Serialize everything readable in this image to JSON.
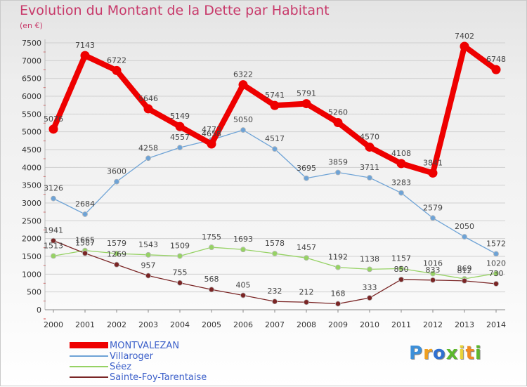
{
  "chart_data": {
    "type": "line",
    "title": "Evolution du Montant de la Dette par Habitant",
    "subtitle": "(en €)",
    "ylim": [
      0,
      7500
    ],
    "yticks": [
      0,
      500,
      1000,
      1500,
      2000,
      2500,
      3000,
      3500,
      4000,
      4500,
      5000,
      5500,
      6000,
      6500,
      7000,
      7500
    ],
    "categories": [
      "2000",
      "2001",
      "2002",
      "2003",
      "2004",
      "2005",
      "2006",
      "2007",
      "2008",
      "2009",
      "2010",
      "2011",
      "2012",
      "2013",
      "2014"
    ],
    "grid": true,
    "legend_position": "bottom-left",
    "series": [
      {
        "name": "MONTVALEZAN",
        "color": "#ee0000",
        "emphasis": true,
        "values": [
          5076,
          7143,
          6722,
          5646,
          5149,
          4658,
          6322,
          5741,
          5791,
          5260,
          4570,
          4108,
          3841,
          7402,
          6748
        ],
        "labels": [
          "5076",
          "7143",
          "6722",
          "5646",
          "5149",
          "4658",
          "6322",
          "5741",
          "5791",
          "5260",
          "4570",
          "4108",
          "3841",
          "7402",
          "6748"
        ]
      },
      {
        "name": "Villaroger",
        "color": "#6ea3d6",
        "values": [
          3126,
          2684,
          3600,
          4258,
          4557,
          4773,
          5050,
          4517,
          3695,
          3859,
          3711,
          3283,
          2579,
          2050,
          1572
        ],
        "labels": [
          "3126",
          "2684",
          "3600",
          "4258",
          "4557",
          "4773",
          "5050",
          "4517",
          "3695",
          "3859",
          "3711",
          "3283",
          "2579",
          "2050",
          "1572"
        ]
      },
      {
        "name": "Séez",
        "color": "#96d264",
        "values": [
          1513,
          1665,
          1579,
          1543,
          1509,
          1755,
          1693,
          1578,
          1457,
          1192,
          1138,
          1157,
          1016,
          869,
          1020
        ],
        "labels": [
          "1513",
          "1665",
          "1579",
          "1543",
          "1509",
          "1755",
          "1693",
          "1578",
          "1457",
          "1192",
          "1138",
          "1157",
          "1016",
          "869",
          "1020"
        ]
      },
      {
        "name": "Sainte-Foy-Tarentaise",
        "color": "#7a2525",
        "values": [
          1941,
          1587,
          1269,
          957,
          755,
          568,
          405,
          232,
          212,
          168,
          333,
          850,
          833,
          812,
          730
        ],
        "labels": [
          "1941",
          "1587",
          "1269",
          "957",
          "755",
          "568",
          "405",
          "232",
          "212",
          "168",
          "333",
          "850",
          "833",
          "812",
          "730"
        ]
      }
    ]
  },
  "logo": {
    "letters": [
      "P",
      "r",
      "o",
      "x",
      "i",
      "t",
      "i"
    ],
    "colors": [
      "#3d8fd8",
      "#f0a020",
      "#2f6fd0",
      "#5cb82c",
      "#e8d23a",
      "#f08a22",
      "#5cb82c"
    ]
  }
}
